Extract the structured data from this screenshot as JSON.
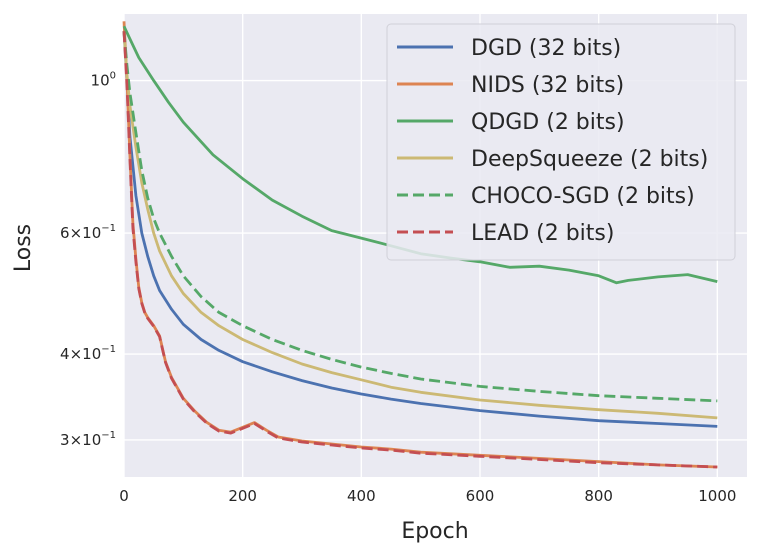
{
  "chart_data": {
    "type": "line",
    "xlabel": "Epoch",
    "ylabel": "Loss",
    "xlim": [
      0,
      1050
    ],
    "ylim": [
      0.265,
      1.25
    ],
    "yscale": "log",
    "grid": true,
    "legend_position": "top-right",
    "x_ticks": [
      {
        "value": 0,
        "label": "0"
      },
      {
        "value": 200,
        "label": "200"
      },
      {
        "value": 400,
        "label": "400"
      },
      {
        "value": 600,
        "label": "600"
      },
      {
        "value": 800,
        "label": "800"
      },
      {
        "value": 1000,
        "label": "1000"
      }
    ],
    "y_ticks": [
      {
        "value": 1.0,
        "base": "10",
        "exp": "0"
      },
      {
        "value": 0.6,
        "base": "6×10",
        "exp": "−1"
      },
      {
        "value": 0.4,
        "base": "4×10",
        "exp": "−1"
      },
      {
        "value": 0.3,
        "base": "3×10",
        "exp": "−1"
      }
    ],
    "series": [
      {
        "name": "DGD (32 bits)",
        "color": "#4c72b0",
        "dash": "solid",
        "x": [
          0,
          5,
          10,
          20,
          30,
          40,
          50,
          60,
          80,
          100,
          130,
          160,
          200,
          250,
          300,
          350,
          400,
          450,
          500,
          600,
          700,
          800,
          900,
          1000
        ],
        "y": [
          1.18,
          1.0,
          0.83,
          0.68,
          0.6,
          0.555,
          0.52,
          0.495,
          0.465,
          0.442,
          0.42,
          0.405,
          0.39,
          0.377,
          0.366,
          0.357,
          0.35,
          0.344,
          0.339,
          0.331,
          0.325,
          0.32,
          0.317,
          0.314
        ]
      },
      {
        "name": "NIDS (32 bits)",
        "color": "#dd8452",
        "dash": "solid",
        "x": [
          0,
          5,
          10,
          15,
          20,
          25,
          30,
          35,
          40,
          50,
          60,
          70,
          80,
          100,
          120,
          140,
          160,
          180,
          200,
          220,
          240,
          260,
          300,
          350,
          400,
          450,
          500,
          600,
          700,
          800,
          900,
          1000
        ],
        "y": [
          1.22,
          1.0,
          0.78,
          0.62,
          0.55,
          0.5,
          0.475,
          0.46,
          0.452,
          0.44,
          0.425,
          0.39,
          0.37,
          0.345,
          0.33,
          0.318,
          0.31,
          0.308,
          0.313,
          0.318,
          0.31,
          0.303,
          0.299,
          0.296,
          0.293,
          0.291,
          0.288,
          0.285,
          0.282,
          0.279,
          0.276,
          0.274
        ]
      },
      {
        "name": "QDGD (2 bits)",
        "color": "#55a868",
        "dash": "solid",
        "x": [
          0,
          10,
          25,
          50,
          75,
          100,
          150,
          200,
          250,
          300,
          350,
          400,
          450,
          500,
          550,
          600,
          650,
          700,
          750,
          800,
          830,
          850,
          900,
          950,
          1000
        ],
        "y": [
          1.2,
          1.15,
          1.08,
          1.0,
          0.93,
          0.87,
          0.78,
          0.72,
          0.67,
          0.635,
          0.605,
          0.59,
          0.575,
          0.56,
          0.552,
          0.545,
          0.535,
          0.537,
          0.53,
          0.52,
          0.508,
          0.512,
          0.518,
          0.522,
          0.51
        ]
      },
      {
        "name": "DeepSqueeze (2 bits)",
        "color": "#ccb974",
        "dash": "solid",
        "x": [
          0,
          5,
          10,
          20,
          30,
          40,
          50,
          60,
          80,
          100,
          130,
          160,
          200,
          250,
          300,
          350,
          400,
          450,
          500,
          600,
          700,
          800,
          900,
          1000
        ],
        "y": [
          1.18,
          1.02,
          0.92,
          0.8,
          0.71,
          0.65,
          0.6,
          0.565,
          0.52,
          0.49,
          0.46,
          0.44,
          0.42,
          0.402,
          0.387,
          0.376,
          0.367,
          0.358,
          0.352,
          0.343,
          0.337,
          0.332,
          0.328,
          0.323
        ]
      },
      {
        "name": "CHOCO-SGD (2 bits)",
        "color": "#55a868",
        "dash": "dashed",
        "x": [
          0,
          5,
          10,
          20,
          30,
          40,
          50,
          60,
          80,
          100,
          130,
          160,
          200,
          250,
          300,
          350,
          400,
          450,
          500,
          600,
          700,
          800,
          900,
          1000
        ],
        "y": [
          1.18,
          1.05,
          0.96,
          0.84,
          0.74,
          0.675,
          0.63,
          0.6,
          0.555,
          0.52,
          0.485,
          0.46,
          0.44,
          0.42,
          0.405,
          0.393,
          0.383,
          0.375,
          0.368,
          0.359,
          0.353,
          0.348,
          0.345,
          0.342
        ]
      },
      {
        "name": "LEAD (2 bits)",
        "color": "#c44e52",
        "dash": "dashed",
        "x": [
          0,
          5,
          10,
          15,
          20,
          25,
          30,
          35,
          40,
          50,
          60,
          70,
          80,
          100,
          120,
          140,
          160,
          180,
          200,
          220,
          240,
          260,
          300,
          350,
          400,
          450,
          500,
          600,
          700,
          800,
          900,
          1000
        ],
        "y": [
          1.18,
          0.98,
          0.77,
          0.61,
          0.545,
          0.498,
          0.474,
          0.459,
          0.451,
          0.439,
          0.424,
          0.389,
          0.369,
          0.344,
          0.329,
          0.317,
          0.309,
          0.307,
          0.312,
          0.317,
          0.309,
          0.302,
          0.298,
          0.295,
          0.292,
          0.29,
          0.287,
          0.284,
          0.281,
          0.278,
          0.276,
          0.274
        ]
      }
    ]
  }
}
